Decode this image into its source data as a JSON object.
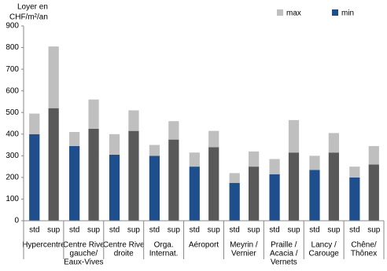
{
  "chart_data": {
    "type": "stacked_bar",
    "ylabel": [
      "Loyer en",
      "CHF/m²/an"
    ],
    "categories": [
      "std",
      "sup",
      "std",
      "sup",
      "std",
      "sup",
      "std",
      "sup",
      "std",
      "sup",
      "std",
      "sup",
      "std",
      "sup",
      "std",
      "sup",
      "std",
      "sup"
    ],
    "groups": [
      [
        "Hypercentre"
      ],
      [
        "Centre Rive",
        "gauche/",
        "Eaux-Vives"
      ],
      [
        "Centre Rive",
        "droite"
      ],
      [
        "Orga.",
        "Internat."
      ],
      [
        "Aéroport"
      ],
      [
        "Meyrin /",
        "Vernier"
      ],
      [
        "Praille /",
        "Acacia /",
        "Vernets"
      ],
      [
        "Lancy /",
        "Carouge"
      ],
      [
        "Chêne/",
        "Thônex"
      ]
    ],
    "series": [
      {
        "name": "min",
        "color": "#1f4e8c",
        "colors": [
          "#1f4e8c",
          "#595959",
          "#1f4e8c",
          "#595959",
          "#1f4e8c",
          "#595959",
          "#1f4e8c",
          "#595959",
          "#1f4e8c",
          "#595959",
          "#1f4e8c",
          "#595959",
          "#1f4e8c",
          "#595959",
          "#1f4e8c",
          "#595959",
          "#1f4e8c",
          "#595959"
        ],
        "values": [
          400,
          520,
          345,
          425,
          305,
          415,
          300,
          375,
          250,
          340,
          175,
          250,
          215,
          315,
          235,
          315,
          200,
          260
        ]
      },
      {
        "name": "max",
        "color": "#bfbfbf",
        "values": [
          95,
          285,
          65,
          135,
          95,
          95,
          50,
          85,
          65,
          75,
          45,
          70,
          70,
          150,
          65,
          90,
          50,
          85
        ]
      }
    ],
    "legend_order": [
      1,
      0
    ],
    "ylim": [
      0,
      900
    ],
    "yticks": [
      0,
      100,
      200,
      300,
      400,
      500,
      600,
      700,
      800,
      900
    ],
    "grid": false
  }
}
